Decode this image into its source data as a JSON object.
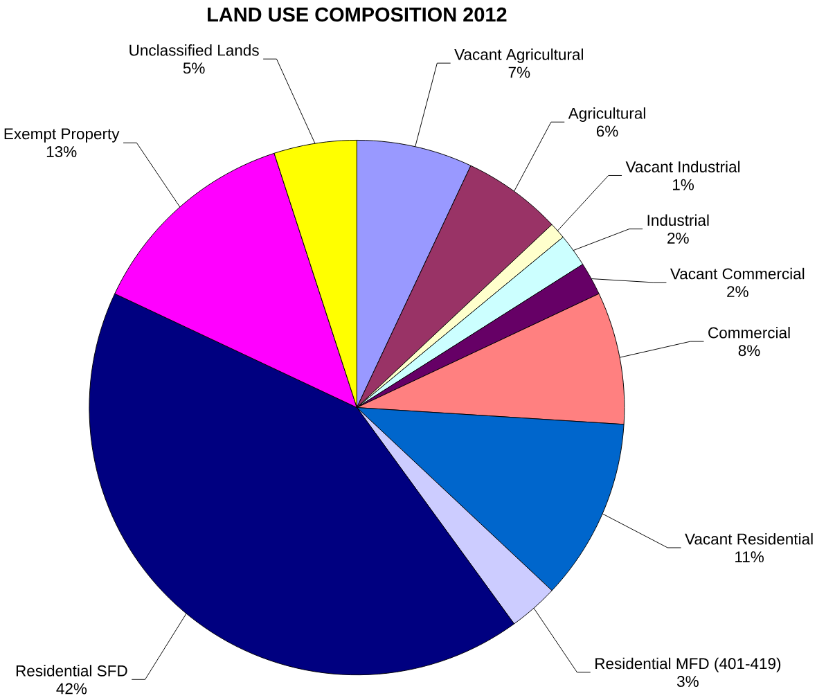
{
  "chart_data": {
    "type": "pie",
    "title": "LAND USE COMPOSITION 2012",
    "categories": [
      "Vacant Agricultural",
      "Agricultural",
      "Vacant Industrial",
      "Industrial",
      "Vacant Commercial",
      "Commercial",
      "Vacant Residential",
      "Residential MFD (401-419)",
      "Residential SFD",
      "Exempt Property",
      "Unclassified Lands"
    ],
    "values": [
      7,
      6,
      1,
      2,
      2,
      8,
      11,
      3,
      42,
      13,
      5
    ],
    "colors": [
      "#9999ff",
      "#993366",
      "#ffffcc",
      "#ccffff",
      "#660066",
      "#ff8080",
      "#0066cc",
      "#ccccff",
      "#000080",
      "#ff00ff",
      "#ffff00"
    ],
    "value_labels": [
      "7%",
      "6%",
      "1%",
      "2%",
      "2%",
      "8%",
      "11%",
      "3%",
      "42%",
      "13%",
      "5%"
    ]
  }
}
